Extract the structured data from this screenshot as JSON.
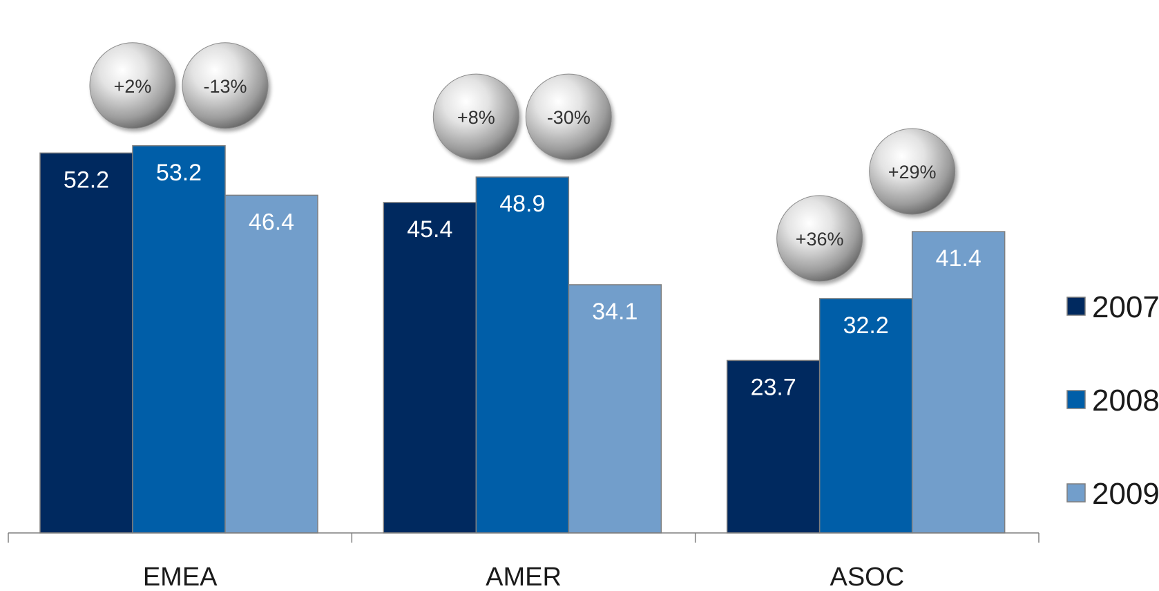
{
  "chart_data": {
    "type": "bar",
    "categories": [
      "EMEA",
      "AMER",
      "ASOC"
    ],
    "series": [
      {
        "name": "2007",
        "values": [
          52.2,
          45.4,
          23.7
        ],
        "color": "#00295F"
      },
      {
        "name": "2008",
        "values": [
          53.2,
          48.9,
          32.2
        ],
        "color": "#005EA8"
      },
      {
        "name": "2009",
        "values": [
          46.4,
          34.1,
          41.4
        ],
        "color": "#729ECB"
      }
    ],
    "data_labels": [
      [
        "52.2",
        "45.4",
        "23.7"
      ],
      [
        "53.2",
        "48.9",
        "32.2"
      ],
      [
        "46.4",
        "34.1",
        "41.4"
      ]
    ],
    "change_bubbles": [
      {
        "category": "EMEA",
        "between": [
          "2007",
          "2008"
        ],
        "label": "+2%"
      },
      {
        "category": "EMEA",
        "between": [
          "2008",
          "2009"
        ],
        "label": "-13%"
      },
      {
        "category": "AMER",
        "between": [
          "2007",
          "2008"
        ],
        "label": "+8%"
      },
      {
        "category": "AMER",
        "between": [
          "2008",
          "2009"
        ],
        "label": "-30%"
      },
      {
        "category": "ASOC",
        "between": [
          "2007",
          "2008"
        ],
        "label": "+36%"
      },
      {
        "category": "ASOC",
        "between": [
          "2008",
          "2009"
        ],
        "label": "+29%"
      }
    ],
    "legend": {
      "position": "right",
      "entries": [
        "2007",
        "2008",
        "2009"
      ]
    },
    "title": "",
    "xlabel": "",
    "ylabel": "",
    "ylim": [
      0,
      60
    ],
    "grid": false,
    "colors": {
      "data_label": "#FFFFFF",
      "axis_label": "#1A1A1A",
      "axis_line": "#7F7F7F",
      "bar_border": "#7F7F7F"
    }
  }
}
